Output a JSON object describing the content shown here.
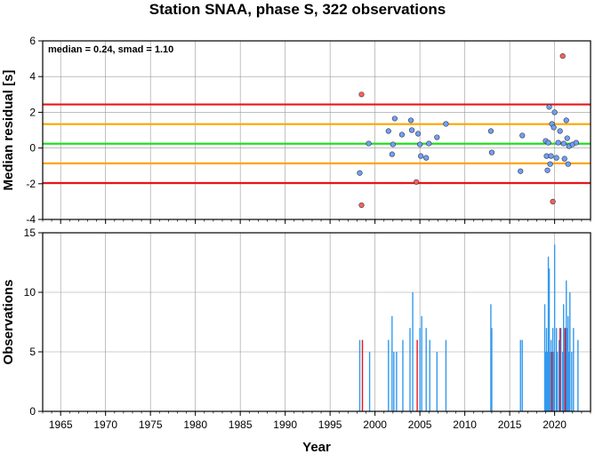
{
  "chart_data": {
    "title": "Station SNAA, phase S, 322 observations",
    "xlabel": "Year",
    "xlim": [
      1963,
      2024
    ],
    "xticks": [
      1965,
      1970,
      1975,
      1980,
      1985,
      1990,
      1995,
      2000,
      2005,
      2010,
      2015,
      2020
    ],
    "grid": true,
    "panels": [
      {
        "type": "scatter",
        "ylabel": "Median residual [s]",
        "ylim": [
          -4,
          6
        ],
        "yticks": [
          -4,
          -2,
          0,
          2,
          4,
          6
        ],
        "annotation": "median = 0.24, smad = 1.10",
        "hlines": [
          {
            "y": 2.44,
            "color": "#e8151b"
          },
          {
            "y": 1.34,
            "color": "#ffa500"
          },
          {
            "y": 0.24,
            "color": "#22dd22"
          },
          {
            "y": -0.86,
            "color": "#ffa500"
          },
          {
            "y": -1.96,
            "color": "#e8151b"
          }
        ],
        "series": [
          {
            "color": "#6fa0ff",
            "points": [
              [
                1998.3,
                -1.4
              ],
              [
                1999.3,
                0.25
              ],
              [
                2001.5,
                0.95
              ],
              [
                2001.9,
                -0.35
              ],
              [
                2002.0,
                0.2
              ],
              [
                2002.2,
                1.65
              ],
              [
                2003.0,
                0.75
              ],
              [
                2004.0,
                1.55
              ],
              [
                2004.1,
                1.0
              ],
              [
                2004.8,
                0.8
              ],
              [
                2005.0,
                0.2
              ],
              [
                2005.1,
                -0.45
              ],
              [
                2005.7,
                -0.55
              ],
              [
                2006.0,
                0.25
              ],
              [
                2006.9,
                0.6
              ],
              [
                2007.9,
                1.35
              ],
              [
                2012.9,
                0.95
              ],
              [
                2013.0,
                -0.25
              ],
              [
                2016.2,
                -1.3
              ],
              [
                2016.4,
                0.7
              ],
              [
                2019.0,
                0.4
              ],
              [
                2019.1,
                -0.45
              ],
              [
                2019.2,
                -1.25
              ],
              [
                2019.3,
                0.3
              ],
              [
                2019.4,
                2.3
              ],
              [
                2019.5,
                -0.9
              ],
              [
                2019.6,
                -0.45
              ],
              [
                2019.7,
                1.35
              ],
              [
                2019.9,
                1.15
              ],
              [
                2020.0,
                2.0
              ],
              [
                2020.2,
                -0.55
              ],
              [
                2020.4,
                0.3
              ],
              [
                2020.6,
                0.95
              ],
              [
                2021.0,
                0.25
              ],
              [
                2021.1,
                -0.6
              ],
              [
                2021.3,
                1.55
              ],
              [
                2021.4,
                0.55
              ],
              [
                2021.5,
                -0.9
              ],
              [
                2021.6,
                0.1
              ],
              [
                2022.0,
                0.2
              ],
              [
                2022.4,
                0.3
              ]
            ]
          },
          {
            "color": "#ff6060",
            "points": [
              [
                1998.5,
                3.0
              ],
              [
                1998.5,
                -3.2
              ],
              [
                2004.6,
                -1.9
              ],
              [
                2019.8,
                -3.0
              ],
              [
                2020.9,
                5.15
              ]
            ]
          }
        ]
      },
      {
        "type": "bar",
        "ylabel": "Observations",
        "ylim": [
          0,
          15
        ],
        "yticks": [
          0,
          5,
          10,
          15
        ],
        "series": [
          {
            "color": "#3399ee",
            "bars": [
              [
                1998.3,
                6
              ],
              [
                1999.4,
                5
              ],
              [
                2001.5,
                6
              ],
              [
                2001.9,
                8
              ],
              [
                2002.1,
                5
              ],
              [
                2002.4,
                5
              ],
              [
                2003.1,
                6
              ],
              [
                2003.9,
                7
              ],
              [
                2004.2,
                10
              ],
              [
                2005.0,
                7
              ],
              [
                2005.2,
                8
              ],
              [
                2005.7,
                7
              ],
              [
                2006.1,
                6
              ],
              [
                2006.9,
                5
              ],
              [
                2007.9,
                6
              ],
              [
                2012.9,
                9
              ],
              [
                2013.0,
                7
              ],
              [
                2016.2,
                6
              ],
              [
                2016.4,
                6
              ],
              [
                2018.9,
                9
              ],
              [
                2019.0,
                5
              ],
              [
                2019.1,
                7
              ],
              [
                2019.2,
                5
              ],
              [
                2019.3,
                13
              ],
              [
                2019.4,
                12
              ],
              [
                2019.5,
                5
              ],
              [
                2019.6,
                6
              ],
              [
                2019.8,
                7
              ],
              [
                2019.9,
                5
              ],
              [
                2020.0,
                14
              ],
              [
                2020.2,
                7
              ],
              [
                2020.3,
                5
              ],
              [
                2020.5,
                6
              ],
              [
                2020.7,
                7
              ],
              [
                2020.9,
                5
              ],
              [
                2021.0,
                9
              ],
              [
                2021.1,
                7
              ],
              [
                2021.2,
                5
              ],
              [
                2021.3,
                11
              ],
              [
                2021.4,
                7
              ],
              [
                2021.5,
                8
              ],
              [
                2021.6,
                5
              ],
              [
                2021.7,
                10
              ],
              [
                2021.9,
                5
              ],
              [
                2022.1,
                7
              ],
              [
                2022.6,
                6
              ]
            ]
          },
          {
            "color": "#e8151b",
            "bars": [
              [
                1998.6,
                6
              ],
              [
                2004.7,
                6
              ],
              [
                2019.7,
                5
              ],
              [
                2020.6,
                7
              ],
              [
                2021.2,
                7
              ]
            ]
          }
        ]
      }
    ]
  }
}
